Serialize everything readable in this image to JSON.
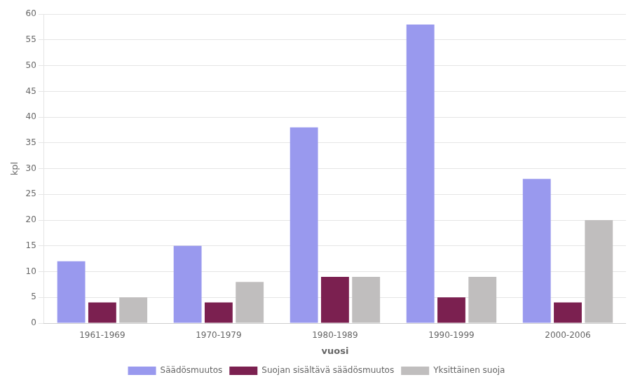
{
  "chart_data": {
    "type": "bar",
    "xlabel": "vuosi",
    "ylabel": "kpl",
    "categories": [
      "1961-1969",
      "1970-1979",
      "1980-1989",
      "1990-1999",
      "2000-2006"
    ],
    "series": [
      {
        "name": "Säädösmuutos",
        "color": "#9999EE",
        "values": [
          12,
          15,
          38,
          58,
          28
        ]
      },
      {
        "name": "Suojan sisältävä säädösmuutos",
        "color": "#7B2050",
        "values": [
          4,
          4,
          9,
          5,
          4
        ]
      },
      {
        "name": "Yksittäinen suoja",
        "color": "#C0BEBE",
        "values": [
          5,
          8,
          9,
          9,
          20
        ]
      }
    ],
    "ylim": [
      0,
      60
    ],
    "yticks": [
      0,
      5,
      10,
      15,
      20,
      25,
      30,
      35,
      40,
      45,
      50,
      55,
      60
    ],
    "grid": true,
    "legend": "bottom"
  }
}
